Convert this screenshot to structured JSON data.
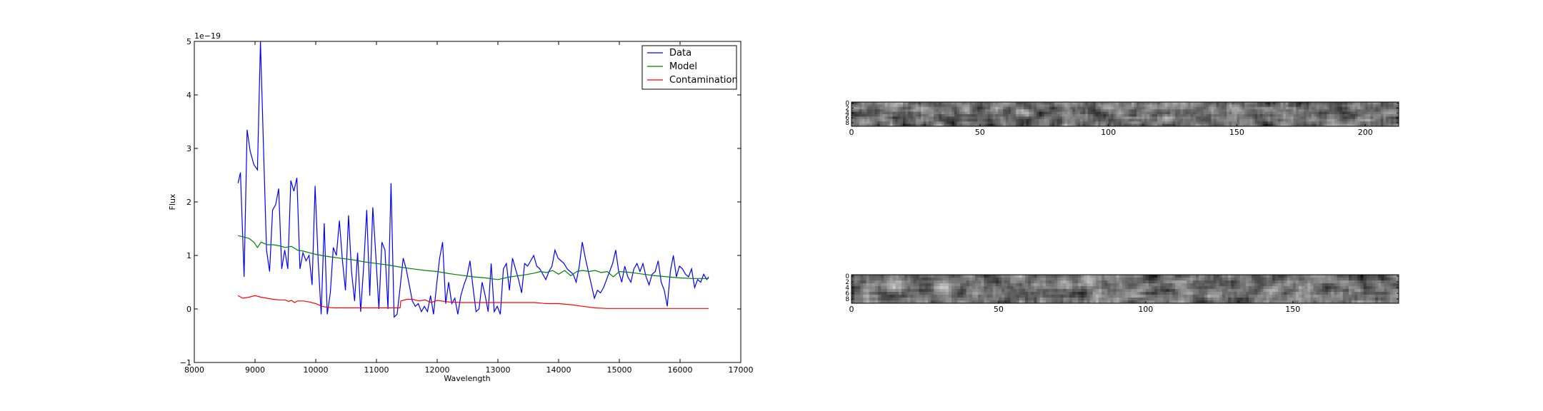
{
  "chart_data": [
    {
      "type": "line",
      "xlabel": "Wavelength",
      "ylabel": "Flux",
      "offset_text": "1e−19",
      "xlim": [
        8000,
        17000
      ],
      "ylim": [
        -1,
        5
      ],
      "x_ticks": [
        8000,
        9000,
        10000,
        11000,
        12000,
        13000,
        14000,
        15000,
        16000,
        17000
      ],
      "y_ticks": [
        -1,
        0,
        1,
        2,
        3,
        4,
        5
      ],
      "legend_position": "top-right",
      "series": [
        {
          "name": "Data",
          "color": "#0000ff",
          "x": [
            8720,
            8760,
            8820,
            8870,
            8920,
            8980,
            9040,
            9090,
            9140,
            9190,
            9240,
            9290,
            9340,
            9390,
            9440,
            9490,
            9540,
            9590,
            9640,
            9690,
            9740,
            9790,
            9840,
            9890,
            9940,
            9990,
            10040,
            10090,
            10140,
            10190,
            10240,
            10290,
            10340,
            10390,
            10440,
            10490,
            10540,
            10590,
            10640,
            10690,
            10740,
            10790,
            10840,
            10890,
            10940,
            10990,
            11040,
            11090,
            11140,
            11190,
            11240,
            11290,
            11340,
            11390,
            11440,
            11490,
            11540,
            11590,
            11640,
            11690,
            11740,
            11790,
            11840,
            11890,
            11940,
            11990,
            12040,
            12090,
            12140,
            12190,
            12240,
            12290,
            12340,
            12390,
            12440,
            12490,
            12540,
            12590,
            12640,
            12690,
            12740,
            12790,
            12840,
            12890,
            12940,
            12990,
            13040,
            13090,
            13140,
            13190,
            13240,
            13290,
            13340,
            13390,
            13440,
            13490,
            13540,
            13590,
            13640,
            13690,
            13740,
            13790,
            13840,
            13890,
            13940,
            13990,
            14040,
            14090,
            14140,
            14190,
            14240,
            14290,
            14340,
            14390,
            14440,
            14490,
            14540,
            14590,
            14640,
            14690,
            14740,
            14790,
            14840,
            14890,
            14940,
            14990,
            15040,
            15090,
            15140,
            15190,
            15240,
            15290,
            15340,
            15390,
            15440,
            15490,
            15540,
            15590,
            15640,
            15690,
            15740,
            15790,
            15840,
            15890,
            15940,
            15990,
            16040,
            16090,
            16140,
            16190,
            16240,
            16290,
            16340,
            16390,
            16440,
            16470
          ],
          "y": [
            2.35,
            2.55,
            0.6,
            3.35,
            2.95,
            2.7,
            2.6,
            5.0,
            3.0,
            1.1,
            0.7,
            1.85,
            1.95,
            2.25,
            0.75,
            1.1,
            0.75,
            2.4,
            2.2,
            2.45,
            0.75,
            1.05,
            0.9,
            1.0,
            0.45,
            2.3,
            0.9,
            -0.1,
            1.6,
            -0.1,
            0.3,
            1.15,
            1.0,
            1.65,
            0.9,
            0.35,
            1.75,
            0.7,
            0.15,
            1.05,
            -0.05,
            0.8,
            1.85,
            0.25,
            1.9,
            1.0,
            0.0,
            1.25,
            1.1,
            0.0,
            2.35,
            -0.15,
            -0.1,
            0.4,
            0.95,
            0.75,
            0.45,
            0.15,
            0.05,
            0.1,
            -0.05,
            0.05,
            -0.05,
            0.25,
            -0.1,
            0.45,
            0.95,
            1.25,
            0.1,
            0.5,
            0.1,
            0.2,
            -0.1,
            0.25,
            0.45,
            0.6,
            0.9,
            0.4,
            -0.05,
            0.0,
            0.5,
            0.25,
            -0.05,
            0.85,
            -0.05,
            0.05,
            -0.1,
            0.75,
            0.85,
            0.35,
            0.95,
            0.75,
            0.55,
            0.3,
            0.85,
            0.8,
            0.9,
            1.0,
            0.8,
            0.75,
            0.65,
            0.55,
            0.7,
            0.8,
            1.1,
            0.95,
            0.9,
            0.85,
            0.75,
            0.7,
            0.65,
            0.5,
            0.8,
            1.25,
            0.95,
            0.7,
            0.45,
            0.2,
            0.35,
            0.3,
            0.4,
            0.55,
            0.7,
            0.85,
            1.1,
            0.7,
            0.5,
            0.8,
            0.6,
            0.5,
            0.75,
            0.85,
            0.7,
            0.85,
            0.6,
            0.45,
            0.65,
            0.7,
            0.9,
            0.5,
            0.35,
            0.05,
            0.7,
            1.0,
            0.6,
            0.8,
            0.75,
            0.65,
            0.6,
            0.75,
            0.4,
            0.55,
            0.5,
            0.65,
            0.55,
            0.6
          ]
        },
        {
          "name": "Model",
          "color": "#008000",
          "x": [
            8720,
            8800,
            8900,
            8980,
            9040,
            9100,
            9200,
            9300,
            9400,
            9500,
            9600,
            9700,
            9800,
            9900,
            10000,
            10200,
            10400,
            10600,
            10800,
            11000,
            11200,
            11400,
            11600,
            11800,
            12000,
            12200,
            12400,
            12600,
            12800,
            13000,
            13200,
            13400,
            13600,
            13700,
            13800,
            13900,
            14000,
            14100,
            14200,
            14300,
            14400,
            14500,
            14600,
            14700,
            14800,
            14900,
            15000,
            15200,
            15400,
            15600,
            15800,
            16000,
            16200,
            16470
          ],
          "y": [
            1.37,
            1.35,
            1.32,
            1.25,
            1.15,
            1.25,
            1.2,
            1.2,
            1.18,
            1.15,
            1.17,
            1.1,
            1.08,
            1.05,
            1.02,
            0.98,
            0.95,
            0.92,
            0.88,
            0.85,
            0.82,
            0.78,
            0.75,
            0.72,
            0.7,
            0.66,
            0.63,
            0.6,
            0.58,
            0.55,
            0.6,
            0.63,
            0.67,
            0.7,
            0.68,
            0.72,
            0.65,
            0.72,
            0.62,
            0.7,
            0.72,
            0.7,
            0.72,
            0.68,
            0.7,
            0.6,
            0.7,
            0.68,
            0.65,
            0.62,
            0.6,
            0.58,
            0.57,
            0.57
          ]
        },
        {
          "name": "Contamination",
          "color": "#ff0000",
          "x": [
            8720,
            8800,
            8900,
            9000,
            9100,
            9200,
            9300,
            9400,
            9500,
            9550,
            9600,
            9650,
            9700,
            9800,
            9900,
            10000,
            10100,
            10200,
            10300,
            10500,
            10700,
            10900,
            11100,
            11300,
            11390,
            11400,
            11500,
            11600,
            11700,
            11800,
            11900,
            12000,
            12200,
            12400,
            12600,
            12800,
            13000,
            13200,
            13400,
            13600,
            13800,
            14000,
            14200,
            14400,
            14600,
            14800,
            15000,
            15500,
            16000,
            16470
          ],
          "y": [
            0.25,
            0.2,
            0.22,
            0.25,
            0.22,
            0.2,
            0.18,
            0.17,
            0.17,
            0.14,
            0.16,
            0.12,
            0.15,
            0.15,
            0.13,
            0.1,
            0.05,
            0.03,
            0.02,
            0.02,
            0.02,
            0.02,
            0.02,
            0.02,
            0.02,
            0.15,
            0.18,
            0.18,
            0.15,
            0.17,
            0.12,
            0.16,
            0.13,
            0.12,
            0.12,
            0.12,
            0.12,
            0.12,
            0.12,
            0.12,
            0.1,
            0.1,
            0.08,
            0.05,
            0.02,
            0.01,
            0.01,
            0.01,
            0.01,
            0.01
          ]
        }
      ]
    },
    {
      "type": "heatmap",
      "xlim": [
        0,
        213
      ],
      "ylim": [
        0,
        9
      ],
      "x_ticks": [
        0,
        50,
        100,
        150,
        200
      ],
      "y_ticks": [
        0,
        2,
        4,
        6,
        8
      ],
      "colormap": "gray",
      "columns": 213,
      "rows": 10
    },
    {
      "type": "heatmap",
      "xlim": [
        0,
        186
      ],
      "ylim": [
        0,
        9
      ],
      "x_ticks": [
        0,
        50,
        100,
        150
      ],
      "y_ticks": [
        0,
        2,
        4,
        6,
        8
      ],
      "colormap": "gray",
      "columns": 186,
      "rows": 10
    }
  ]
}
